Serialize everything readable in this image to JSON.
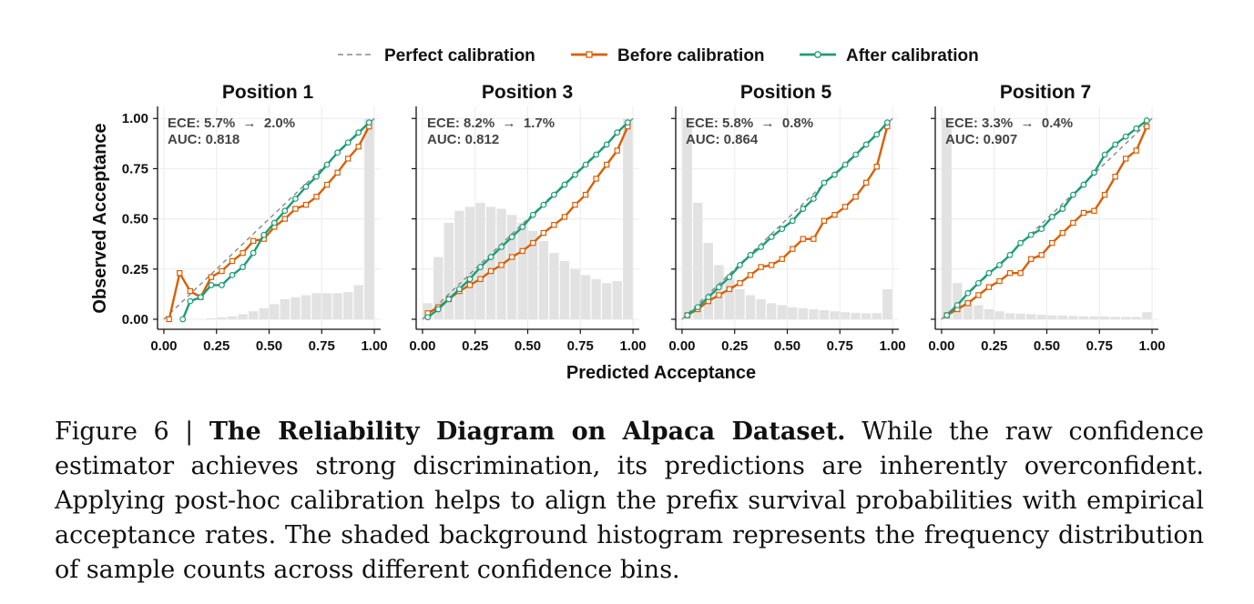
{
  "legend": {
    "perfect_label": "Perfect calibration",
    "before_label": "Before calibration",
    "after_label": "After calibration"
  },
  "colors": {
    "before": "#d95f02",
    "after": "#1b9e77",
    "perfect": "#888888",
    "histogram": "#e2e2e2",
    "grid": "#ebebeb"
  },
  "axes": {
    "xlabel": "Predicted Acceptance",
    "ylabel": "Observed Acceptance",
    "xlim": [
      -0.03,
      1.03
    ],
    "ylim": [
      -0.05,
      1.06
    ],
    "ticks": [
      0,
      0.25,
      0.5,
      0.75,
      1.0
    ],
    "tick_labels": [
      "0.00",
      "0.25",
      "0.50",
      "0.75",
      "1.00"
    ]
  },
  "chart_data": [
    {
      "type": "line",
      "title": "Position 1",
      "ece_text": "ECE: 5.7%  →  2.0%",
      "auc_text": "AUC: 0.818",
      "histogram": {
        "bin_centers": [
          0.025,
          0.075,
          0.125,
          0.175,
          0.225,
          0.275,
          0.325,
          0.375,
          0.425,
          0.475,
          0.525,
          0.575,
          0.625,
          0.675,
          0.725,
          0.775,
          0.825,
          0.875,
          0.925,
          0.975
        ],
        "heights": [
          0.0,
          0.0,
          0.0,
          0.0,
          0.005,
          0.01,
          0.015,
          0.025,
          0.04,
          0.055,
          0.075,
          0.1,
          0.11,
          0.12,
          0.13,
          0.13,
          0.13,
          0.135,
          0.17,
          1.0
        ]
      },
      "series": [
        {
          "name": "Before calibration",
          "x": [
            0.025,
            0.075,
            0.125,
            0.175,
            0.225,
            0.275,
            0.325,
            0.375,
            0.425,
            0.475,
            0.525,
            0.575,
            0.625,
            0.675,
            0.725,
            0.775,
            0.825,
            0.875,
            0.925,
            0.975
          ],
          "y": [
            0.0,
            0.23,
            0.14,
            0.11,
            0.21,
            0.24,
            0.29,
            0.33,
            0.39,
            0.4,
            0.46,
            0.5,
            0.55,
            0.57,
            0.61,
            0.67,
            0.73,
            0.8,
            0.86,
            0.96
          ]
        },
        {
          "name": "After calibration",
          "x": [
            0.09,
            0.125,
            0.175,
            0.225,
            0.275,
            0.325,
            0.375,
            0.425,
            0.475,
            0.525,
            0.575,
            0.625,
            0.675,
            0.725,
            0.775,
            0.825,
            0.875,
            0.925,
            0.975
          ],
          "y": [
            0.0,
            0.09,
            0.11,
            0.17,
            0.17,
            0.22,
            0.26,
            0.33,
            0.42,
            0.48,
            0.54,
            0.6,
            0.66,
            0.71,
            0.77,
            0.83,
            0.88,
            0.93,
            0.98
          ]
        }
      ]
    },
    {
      "type": "line",
      "title": "Position 3",
      "ece_text": "ECE: 8.2%  →  1.7%",
      "auc_text": "AUC: 0.812",
      "histogram": {
        "bin_centers": [
          0.025,
          0.075,
          0.125,
          0.175,
          0.225,
          0.275,
          0.325,
          0.375,
          0.425,
          0.475,
          0.525,
          0.575,
          0.625,
          0.675,
          0.725,
          0.775,
          0.825,
          0.875,
          0.925,
          0.975
        ],
        "heights": [
          0.08,
          0.31,
          0.48,
          0.54,
          0.56,
          0.58,
          0.56,
          0.55,
          0.52,
          0.48,
          0.44,
          0.39,
          0.33,
          0.29,
          0.25,
          0.22,
          0.2,
          0.18,
          0.19,
          1.0
        ]
      },
      "series": [
        {
          "name": "Before calibration",
          "x": [
            0.025,
            0.075,
            0.125,
            0.175,
            0.225,
            0.275,
            0.325,
            0.375,
            0.425,
            0.475,
            0.525,
            0.575,
            0.625,
            0.675,
            0.725,
            0.775,
            0.825,
            0.875,
            0.925,
            0.975
          ],
          "y": [
            0.03,
            0.06,
            0.1,
            0.14,
            0.17,
            0.2,
            0.24,
            0.27,
            0.31,
            0.34,
            0.38,
            0.43,
            0.47,
            0.51,
            0.57,
            0.62,
            0.7,
            0.77,
            0.84,
            0.96
          ]
        },
        {
          "name": "After calibration",
          "x": [
            0.025,
            0.075,
            0.125,
            0.175,
            0.225,
            0.275,
            0.325,
            0.375,
            0.425,
            0.475,
            0.525,
            0.575,
            0.625,
            0.675,
            0.725,
            0.775,
            0.825,
            0.875,
            0.925,
            0.975
          ],
          "y": [
            0.01,
            0.05,
            0.1,
            0.15,
            0.2,
            0.26,
            0.31,
            0.36,
            0.41,
            0.46,
            0.52,
            0.57,
            0.62,
            0.67,
            0.72,
            0.77,
            0.82,
            0.87,
            0.93,
            0.98
          ]
        }
      ]
    },
    {
      "type": "line",
      "title": "Position 5",
      "ece_text": "ECE: 5.8%  →  0.8%",
      "auc_text": "AUC: 0.864",
      "histogram": {
        "bin_centers": [
          0.025,
          0.075,
          0.125,
          0.175,
          0.225,
          0.275,
          0.325,
          0.375,
          0.425,
          0.475,
          0.525,
          0.575,
          0.625,
          0.675,
          0.725,
          0.775,
          0.825,
          0.875,
          0.925,
          0.975
        ],
        "heights": [
          1.0,
          0.58,
          0.38,
          0.27,
          0.2,
          0.15,
          0.12,
          0.1,
          0.08,
          0.07,
          0.06,
          0.055,
          0.05,
          0.045,
          0.04,
          0.035,
          0.032,
          0.03,
          0.03,
          0.15
        ]
      },
      "series": [
        {
          "name": "Before calibration",
          "x": [
            0.025,
            0.075,
            0.125,
            0.175,
            0.225,
            0.275,
            0.325,
            0.375,
            0.425,
            0.475,
            0.525,
            0.575,
            0.625,
            0.675,
            0.725,
            0.775,
            0.825,
            0.875,
            0.925,
            0.975
          ],
          "y": [
            0.02,
            0.05,
            0.09,
            0.12,
            0.15,
            0.18,
            0.22,
            0.26,
            0.27,
            0.3,
            0.35,
            0.4,
            0.4,
            0.49,
            0.52,
            0.56,
            0.61,
            0.68,
            0.76,
            0.96
          ]
        },
        {
          "name": "After calibration",
          "x": [
            0.025,
            0.075,
            0.125,
            0.175,
            0.225,
            0.275,
            0.325,
            0.375,
            0.425,
            0.475,
            0.525,
            0.575,
            0.625,
            0.675,
            0.725,
            0.775,
            0.825,
            0.875,
            0.925,
            0.975
          ],
          "y": [
            0.02,
            0.06,
            0.11,
            0.16,
            0.21,
            0.27,
            0.32,
            0.36,
            0.41,
            0.45,
            0.49,
            0.55,
            0.6,
            0.68,
            0.72,
            0.77,
            0.82,
            0.87,
            0.92,
            0.98
          ]
        }
      ]
    },
    {
      "type": "line",
      "title": "Position 7",
      "ece_text": "ECE: 3.3%  →  0.4%",
      "auc_text": "AUC: 0.907",
      "histogram": {
        "bin_centers": [
          0.025,
          0.075,
          0.125,
          0.175,
          0.225,
          0.275,
          0.325,
          0.375,
          0.425,
          0.475,
          0.525,
          0.575,
          0.625,
          0.675,
          0.725,
          0.775,
          0.825,
          0.875,
          0.925,
          0.975
        ],
        "heights": [
          1.0,
          0.18,
          0.1,
          0.07,
          0.05,
          0.04,
          0.03,
          0.028,
          0.025,
          0.022,
          0.02,
          0.018,
          0.016,
          0.015,
          0.014,
          0.013,
          0.012,
          0.012,
          0.012,
          0.035
        ]
      },
      "series": [
        {
          "name": "Before calibration",
          "x": [
            0.025,
            0.075,
            0.125,
            0.175,
            0.225,
            0.275,
            0.325,
            0.375,
            0.425,
            0.475,
            0.525,
            0.575,
            0.625,
            0.675,
            0.725,
            0.775,
            0.825,
            0.875,
            0.925,
            0.975
          ],
          "y": [
            0.02,
            0.05,
            0.08,
            0.12,
            0.16,
            0.19,
            0.23,
            0.23,
            0.3,
            0.32,
            0.38,
            0.43,
            0.48,
            0.53,
            0.54,
            0.62,
            0.71,
            0.8,
            0.84,
            0.96
          ]
        },
        {
          "name": "After calibration",
          "x": [
            0.025,
            0.075,
            0.125,
            0.175,
            0.225,
            0.275,
            0.325,
            0.375,
            0.425,
            0.475,
            0.525,
            0.575,
            0.625,
            0.675,
            0.725,
            0.775,
            0.825,
            0.875,
            0.925,
            0.975
          ],
          "y": [
            0.02,
            0.07,
            0.13,
            0.18,
            0.23,
            0.27,
            0.32,
            0.38,
            0.42,
            0.45,
            0.51,
            0.55,
            0.62,
            0.67,
            0.73,
            0.82,
            0.87,
            0.91,
            0.95,
            0.99
          ]
        }
      ]
    }
  ],
  "caption": {
    "label": "Figure 6 | ",
    "title": "The Reliability Diagram on Alpaca Dataset.",
    "body": " While the raw confidence estimator achieves strong discrimination, its predictions are inherently overconfident. Applying post-hoc calibration helps to align the prefix survival probabilities with empirical acceptance rates. The shaded background histogram represents the frequency distribution of sample counts across different confidence bins."
  }
}
